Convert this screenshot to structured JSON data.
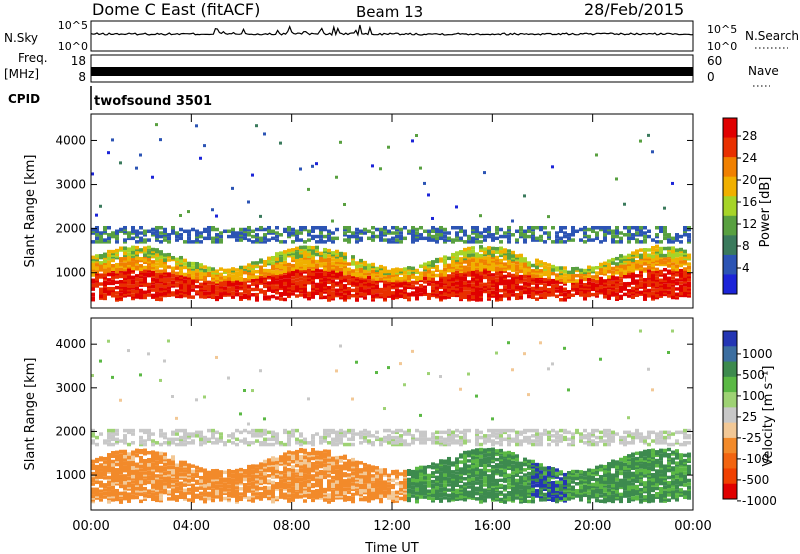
{
  "header": {
    "station": "Dome C East (fitACF)",
    "beam": "Beam 13",
    "date": "28/Feb/2015"
  },
  "top_panels": {
    "nsky_label": "N.Sky",
    "nsky_top": "10^5",
    "nsky_bottom": "10^0",
    "nsearch_label": "N.Search",
    "nsearch_top": "10^5",
    "nsearch_bottom": "10^0",
    "freq_label": "Freq.",
    "freq_unit": "[MHz]",
    "freq_top": "18",
    "freq_bottom": "8",
    "nave_label": "Nave",
    "nave_top": "60",
    "nave_bottom": "0",
    "cpid_label": "CPID",
    "cpid_value": "twofsound 3501"
  },
  "colors": {
    "power": [
      "#1c24d8",
      "#2c54b4",
      "#3a7a5c",
      "#58a040",
      "#a6d428",
      "#f0b000",
      "#f08000",
      "#e83000",
      "#e00000"
    ],
    "velocity": [
      "#2436b4",
      "#3c6ea0",
      "#3d8a4e",
      "#5ab844",
      "#9ed274",
      "#c8c8c8",
      "#f2c896",
      "#f28a2a",
      "#f26410",
      "#f04000",
      "#e00000"
    ]
  },
  "chart_data": [
    {
      "type": "heatmap",
      "name": "power",
      "ylabel": "Slant Range [km]",
      "yticks": [
        1000,
        2000,
        3000,
        4000
      ],
      "ylim": [
        200,
        4600
      ],
      "xticks": [
        "00:00",
        "04:00",
        "08:00",
        "12:00",
        "16:00",
        "20:00",
        "00:00"
      ],
      "xlim_hours": [
        0,
        24
      ],
      "colorbar": {
        "label": "Power [dB]",
        "ticks": [
          "4",
          "8",
          "12",
          "16",
          "20",
          "24",
          "28"
        ]
      }
    },
    {
      "type": "heatmap",
      "name": "velocity",
      "ylabel": "Slant Range [km]",
      "yticks": [
        1000,
        2000,
        3000,
        4000
      ],
      "ylim": [
        200,
        4600
      ],
      "xticks": [
        "00:00",
        "04:00",
        "08:00",
        "12:00",
        "16:00",
        "20:00",
        "00:00"
      ],
      "xlim_hours": [
        0,
        24
      ],
      "xlabel": "Time UT",
      "colorbar": {
        "label": "Velocity [m s⁻¹]",
        "ticks": [
          "1000",
          "500",
          "100",
          "25",
          "-25",
          "-100",
          "-500",
          "-1000"
        ]
      }
    }
  ]
}
